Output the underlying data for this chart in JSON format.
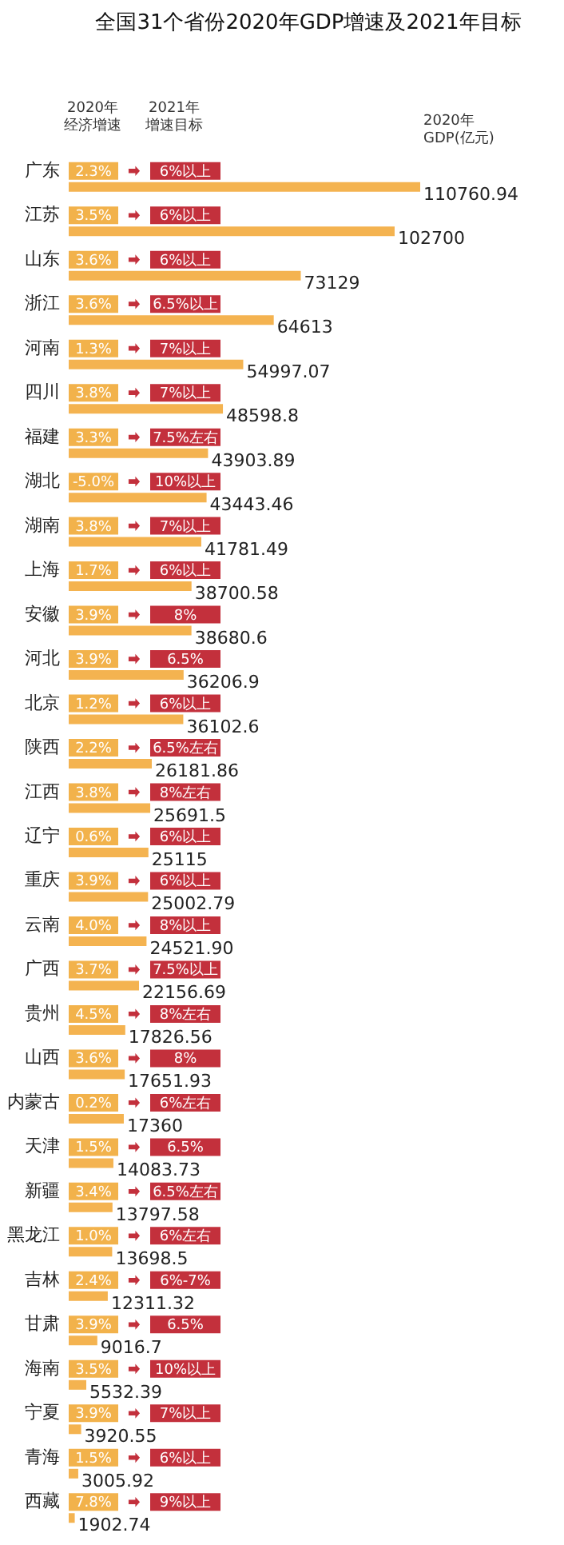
{
  "chart_data": {
    "type": "bar",
    "orientation": "horizontal",
    "title": "全国31个省份2020年GDP增速及2021年目标",
    "xlabel": "2020年GDP(亿元)",
    "tick_labels": "y",
    "grid": false,
    "color": "#f4b350",
    "categories": [
      "广东",
      "江苏",
      "山东",
      "浙江",
      "河南",
      "四川",
      "福建",
      "湖北",
      "湖南",
      "上海",
      "安徽",
      "河北",
      "北京",
      "陕西",
      "江西",
      "辽宁",
      "重庆",
      "云南",
      "广西",
      "贵州",
      "山西",
      "内蒙古",
      "天津",
      "新疆",
      "黑龙江",
      "吉林",
      "甘肃",
      "海南",
      "宁夏",
      "青海",
      "西藏"
    ],
    "values": [
      110760.94,
      102700,
      73129,
      64613,
      54997.07,
      48598.8,
      43903.89,
      43443.46,
      41781.49,
      38700.58,
      38680.6,
      36206.9,
      36102.6,
      26181.86,
      25691.5,
      25115,
      25002.79,
      24521.9,
      22156.69,
      17826.56,
      17651.93,
      17360,
      14083.73,
      13797.58,
      13698.5,
      12311.32,
      9016.7,
      5532.39,
      3920.55,
      3005.92,
      1902.74
    ],
    "value_labels": [
      "110760.94",
      "102700",
      "73129",
      "64613",
      "54997.07",
      "48598.8",
      "43903.89",
      "43443.46",
      "41781.49",
      "38700.58",
      "38680.6",
      "36206.9",
      "36102.6",
      "26181.86",
      "25691.5",
      "25115",
      "25002.79",
      "24521.90",
      "22156.69",
      "17826.56",
      "17651.93",
      "17360",
      "14083.73",
      "13797.58",
      "13698.5",
      "12311.32",
      "9016.7",
      "5532.39",
      "3920.55",
      "3005.92",
      "1902.74"
    ],
    "annotations": [
      "2020年经济增速",
      "2021年增速目标",
      "2.3%",
      "6%以上",
      "3.5%",
      "6%以上",
      "3.6%",
      "6%以上",
      "3.6%",
      "6.5%以上",
      "1.3%",
      "7%以上",
      "3.8%",
      "7%以上",
      "3.3%",
      "7.5%左右",
      "-5.0%",
      "10%以上",
      "3.8%",
      "7%以上",
      "1.7%",
      "6%以上",
      "3.9%",
      "8%",
      "3.9%",
      "6.5%",
      "1.2%",
      "6%以上",
      "2.2%",
      "6.5%左右",
      "3.8%",
      "8%左右",
      "0.6%",
      "6%以上",
      "3.9%",
      "6%以上",
      "4.0%",
      "8%以上",
      "3.7%",
      "7.5%以上",
      "4.5%",
      "8%左右",
      "3.6%",
      "8%",
      "0.2%",
      "6%左右",
      "1.5%",
      "6.5%",
      "3.4%",
      "6.5%左右",
      "1.0%",
      "6%左右",
      "2.4%",
      "6%-7%",
      "3.9%",
      "6.5%",
      "3.5%",
      "10%以上",
      "3.9%",
      "7%以上",
      "1.5%",
      "6%以上",
      "7.8%",
      "9%以上"
    ]
  }
}
